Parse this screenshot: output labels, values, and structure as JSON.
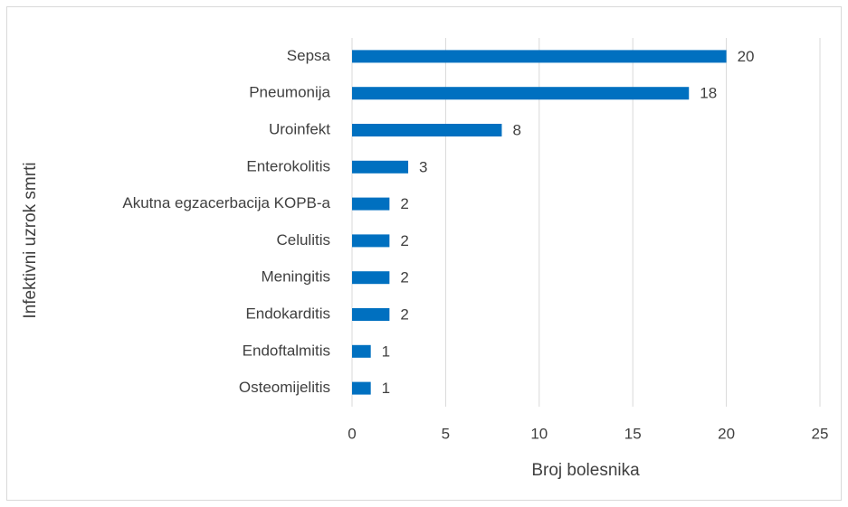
{
  "chart_data": {
    "type": "barh",
    "categories": [
      "Sepsa",
      "Pneumonija",
      "Uroinfekt",
      "Enterokolitis",
      "Akutna egzacerbacija KOPB-a",
      "Celulitis",
      "Meningitis",
      "Endokarditis",
      "Endoftalmitis",
      "Osteomijelitis"
    ],
    "values": [
      20,
      18,
      8,
      3,
      2,
      2,
      2,
      2,
      1,
      1
    ],
    "color": "#0070c0",
    "xlabel": "Broj bolesnika",
    "ylabel": "Infektivni uzrok smrti",
    "xlim": [
      0,
      25
    ],
    "xticks": [
      0,
      5,
      10,
      15,
      20,
      25
    ],
    "grid": true
  }
}
